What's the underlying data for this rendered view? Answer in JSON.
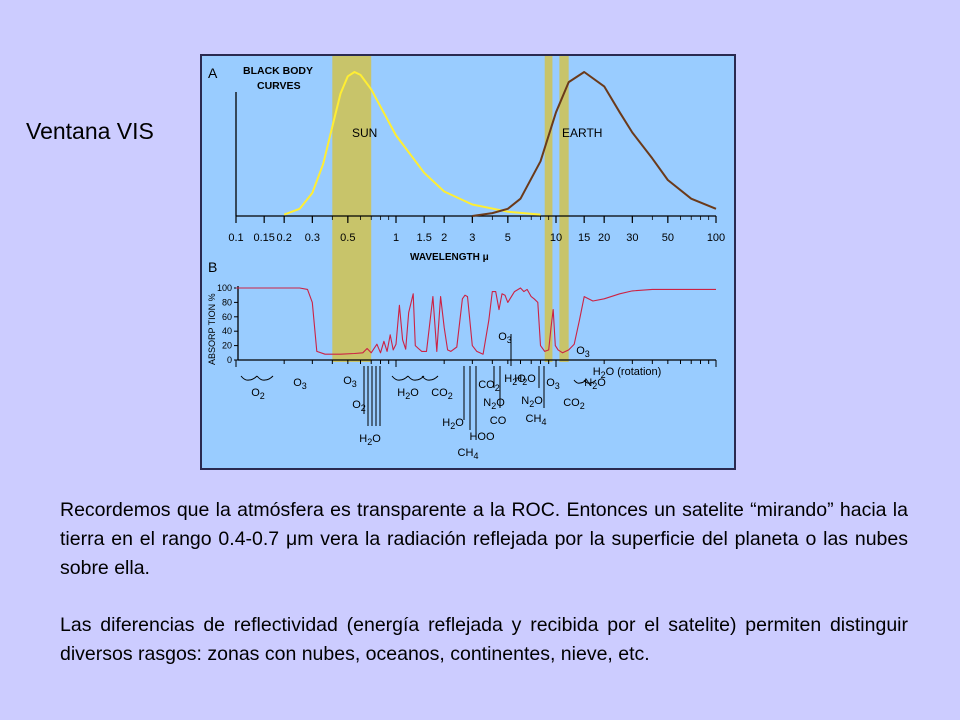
{
  "slide": {
    "title": "Ventana VIS",
    "paragraph_1": "Recordemos que la atmósfera es transparente a la ROC. Entonces un satelite “mirando” hacia la tierra en el rango 0.4-0.7 μm vera la radiación reflejada por la superficie del planeta o las nubes sobre ella.",
    "paragraph_2": "Las diferencias de reflectividad (energía reflejada y recibida por el satelite) permiten distinguir diversos rasgos: zonas con nubes, oceanos, continentes, nieve, etc."
  },
  "colors": {
    "background": "#ccccff",
    "figure_bg": "#99ccff",
    "sun_curve": "#ffee33",
    "earth_curve": "#6b3a1a",
    "absorption_curve": "#cc2244",
    "window_band": "#c8c46a"
  },
  "figure": {
    "panel_a": {
      "letter": "A",
      "heading_line1": "BLACK BODY",
      "heading_line2": "CURVES",
      "sun_label": "SUN",
      "earth_label": "EARTH",
      "ticks": [
        "0.1",
        "0.15",
        "0.2",
        "0.3",
        "0.5",
        "1",
        "1.5",
        "2",
        "3",
        "5",
        "10",
        "15",
        "20",
        "30",
        "50",
        "100"
      ],
      "xlabel": "WAVELENGTH μ"
    },
    "panel_b": {
      "letter": "B",
      "ylabel": "ABSORP TION %",
      "yticks": [
        "100",
        "80",
        "60",
        "40",
        "20",
        "0"
      ],
      "molecules": {
        "o2_a": "O2",
        "o3_a": "O3",
        "o3_b": "O3",
        "o2_b": "O2",
        "h2o_a": "H2O",
        "h2o_b": "H2O",
        "co2_a": "CO2",
        "h2o_c": "H2O",
        "h2o_d": "H2O",
        "hdo": "HOO",
        "ch4_a": "CH4",
        "o3_c": "O3",
        "co2_b": "CO2",
        "n2o_a": "N2O",
        "co": "CO",
        "h2o_e": "H2O",
        "n2o_b": "N2O",
        "ch4_b": "CH4",
        "o3_d": "O3",
        "o3_e": "O3",
        "n2o_c": "N2O",
        "co2_c": "CO2",
        "h2o_rot": "H2O (rotation)"
      }
    }
  },
  "chart_data": [
    {
      "type": "line",
      "title": "BLACK BODY CURVES",
      "xlabel": "WAVELENGTH μ",
      "ylabel": "",
      "xscale": "log",
      "xlim": [
        0.1,
        100
      ],
      "series": [
        {
          "name": "SUN",
          "x": [
            0.2,
            0.25,
            0.3,
            0.35,
            0.4,
            0.45,
            0.5,
            0.55,
            0.6,
            0.7,
            0.8,
            1,
            1.5,
            2,
            3,
            5,
            8
          ],
          "y": [
            0.01,
            0.05,
            0.16,
            0.36,
            0.62,
            0.85,
            0.97,
            1.0,
            0.98,
            0.88,
            0.76,
            0.56,
            0.3,
            0.17,
            0.08,
            0.03,
            0.01
          ]
        },
        {
          "name": "EARTH",
          "x": [
            3,
            4,
            5,
            6,
            8,
            10,
            12,
            15,
            20,
            25,
            30,
            40,
            50,
            70,
            100
          ],
          "y": [
            0.0,
            0.02,
            0.05,
            0.12,
            0.38,
            0.72,
            0.93,
            1.0,
            0.9,
            0.72,
            0.58,
            0.4,
            0.25,
            0.12,
            0.05
          ]
        }
      ],
      "highlight_bands_um": [
        [
          0.4,
          0.7
        ],
        [
          8.5,
          9.5
        ],
        [
          10.5,
          12
        ]
      ]
    },
    {
      "type": "line",
      "title": "",
      "xlabel": "WAVELENGTH μ",
      "ylabel": "ABSORP TION %",
      "xscale": "log",
      "xlim": [
        0.1,
        100
      ],
      "ylim": [
        0,
        100
      ],
      "series": [
        {
          "name": "",
          "x": [
            0.1,
            0.25,
            0.28,
            0.3,
            0.32,
            0.36,
            0.45,
            0.55,
            0.62,
            0.66,
            0.7,
            0.76,
            0.8,
            0.84,
            0.88,
            0.92,
            0.96,
            1.0,
            1.05,
            1.1,
            1.15,
            1.2,
            1.28,
            1.32,
            1.38,
            1.45,
            1.55,
            1.7,
            1.8,
            1.9,
            2.0,
            2.1,
            2.2,
            2.4,
            2.6,
            2.7,
            2.8,
            3.0,
            3.2,
            3.5,
            3.8,
            4.0,
            4.2,
            4.4,
            4.6,
            4.8,
            5.0,
            5.5,
            6.0,
            6.3,
            6.6,
            7.0,
            7.3,
            7.7,
            8.0,
            8.5,
            9.0,
            9.3,
            9.6,
            9.9,
            10.3,
            11,
            12,
            13,
            14,
            15,
            17,
            20,
            25,
            30,
            40,
            50,
            70,
            100
          ],
          "y": [
            100,
            100,
            98,
            80,
            12,
            8,
            8,
            9,
            10,
            16,
            10,
            22,
            10,
            26,
            12,
            35,
            14,
            22,
            76,
            28,
            15,
            66,
            92,
            20,
            16,
            12,
            12,
            88,
            12,
            88,
            45,
            14,
            12,
            18,
            85,
            90,
            88,
            20,
            12,
            8,
            55,
            95,
            95,
            70,
            92,
            90,
            80,
            95,
            100,
            95,
            98,
            88,
            85,
            80,
            20,
            12,
            14,
            45,
            70,
            20,
            14,
            10,
            14,
            22,
            55,
            88,
            82,
            85,
            92,
            96,
            98,
            98,
            98,
            98
          ]
        }
      ]
    }
  ]
}
